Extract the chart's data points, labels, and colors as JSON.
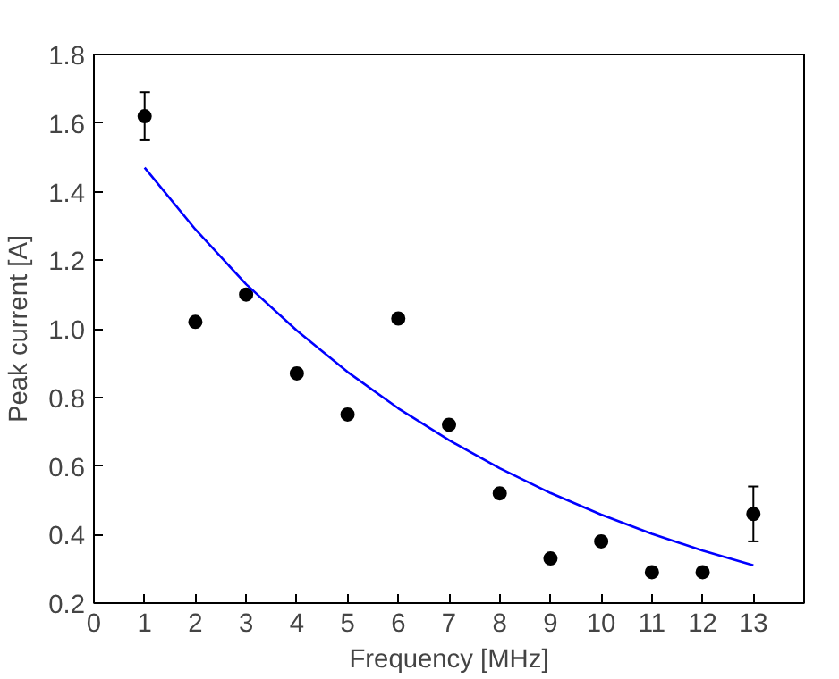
{
  "chart_data": {
    "type": "scatter",
    "xlabel": "Frequency [MHz]",
    "ylabel": "Peak current [A]",
    "xlim": [
      0,
      14
    ],
    "ylim": [
      0.2,
      1.8
    ],
    "xticks": [
      0,
      1,
      2,
      3,
      4,
      5,
      6,
      7,
      8,
      9,
      10,
      11,
      12,
      13
    ],
    "yticks": [
      {
        "value": 0.2,
        "label": "0.2"
      },
      {
        "value": 0.4,
        "label": "0.4"
      },
      {
        "value": 0.6,
        "label": "0.6"
      },
      {
        "value": 0.8,
        "label": "0.8"
      },
      {
        "value": 1.0,
        "label": "1.0"
      },
      {
        "value": 1.2,
        "label": "1.2"
      },
      {
        "value": 1.4,
        "label": "1.4"
      },
      {
        "value": 1.6,
        "label": "1.6"
      },
      {
        "value": 1.8,
        "label": "1.8"
      }
    ],
    "grid": false,
    "series": [
      {
        "marker": "circle",
        "color": "#000000",
        "x": [
          1,
          2,
          3,
          4,
          5,
          6,
          7,
          8,
          9,
          10,
          11,
          12,
          13
        ],
        "values": [
          1.62,
          1.02,
          1.1,
          0.87,
          0.75,
          1.03,
          0.72,
          0.52,
          0.33,
          0.38,
          0.29,
          0.29,
          0.46
        ],
        "errors": [
          0.07,
          null,
          null,
          null,
          null,
          null,
          null,
          null,
          null,
          null,
          null,
          null,
          0.08
        ]
      },
      {
        "type": "line",
        "color": "#0000ff",
        "x": [
          1,
          2,
          3,
          4,
          5,
          6,
          7,
          8,
          9,
          10,
          11,
          12,
          13
        ],
        "values": [
          1.47,
          1.29,
          1.13,
          0.995,
          0.874,
          0.768,
          0.675,
          0.593,
          0.521,
          0.458,
          0.402,
          0.353,
          0.31
        ]
      }
    ]
  }
}
